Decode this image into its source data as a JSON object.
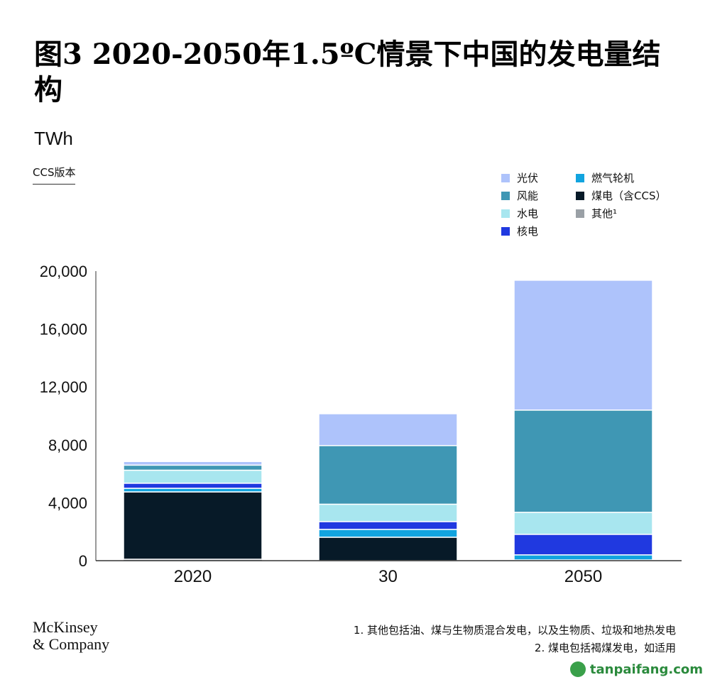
{
  "header": {
    "title": "图3 2020-2050年1.5ºC情景下中国的发电量结构",
    "unit": "TWh",
    "version": "CCS版本"
  },
  "chart_data": {
    "type": "bar",
    "stacked": true,
    "title": "图3 2020-2050年1.5ºC情景下中国的发电量结构",
    "ylabel": "TWh",
    "ylim": [
      0,
      20000
    ],
    "yticks": [
      "0",
      "4,000",
      "8,000",
      "12,000",
      "16,000",
      "20,000"
    ],
    "ytick_values": [
      0,
      4000,
      8000,
      12000,
      16000,
      20000
    ],
    "categories": [
      "2020",
      "30",
      "2050"
    ],
    "grid": false,
    "legend_position": "top-right",
    "series": [
      {
        "name": "其他¹",
        "color": "#9aa0a6",
        "values": [
          100,
          0,
          50
        ]
      },
      {
        "name": "煤电（含CCS）",
        "color": "#071a28",
        "values": [
          4650,
          1620,
          0
        ]
      },
      {
        "name": "燃气轮机",
        "color": "#11a4df",
        "values": [
          250,
          540,
          350
        ]
      },
      {
        "name": "核电",
        "color": "#2039e0",
        "values": [
          350,
          540,
          1420
        ]
      },
      {
        "name": "水电",
        "color": "#a8e6ef",
        "values": [
          900,
          1200,
          1520
        ]
      },
      {
        "name": "风能",
        "color": "#3f97b4",
        "values": [
          350,
          4050,
          7060
        ]
      },
      {
        "name": "光伏",
        "color": "#aec3fb",
        "values": [
          250,
          2200,
          8970
        ]
      }
    ]
  },
  "legend": [
    {
      "label": "光伏",
      "color": "#aec3fb"
    },
    {
      "label": "燃气轮机",
      "color": "#11a4df"
    },
    {
      "label": "风能",
      "color": "#3f97b4"
    },
    {
      "label": "煤电（含CCS）",
      "color": "#071a28"
    },
    {
      "label": "水电",
      "color": "#a8e6ef"
    },
    {
      "label": "其他¹",
      "color": "#9aa0a6"
    },
    {
      "label": "核电",
      "color": "#2039e0"
    }
  ],
  "footer": {
    "logo_line1": "McKinsey",
    "logo_line2": "& Company",
    "note1": "1. 其他包括油、煤与生物质混合发电，以及生物质、垃圾和地热发电",
    "note2": "2. 煤电包括褐煤发电，如适用",
    "watermark": "tanpaifang.com"
  }
}
